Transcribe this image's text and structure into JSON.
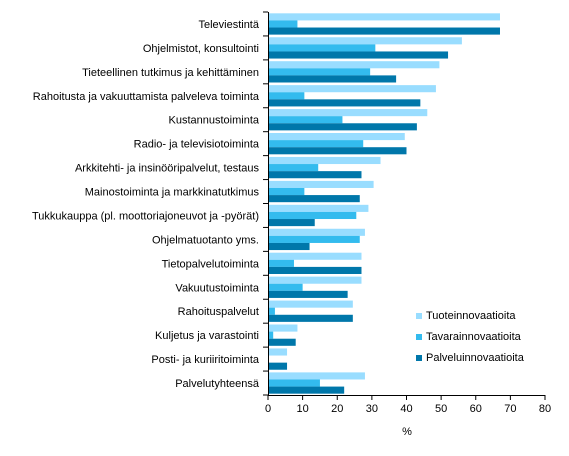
{
  "chart_data": {
    "type": "bar",
    "orientation": "horizontal",
    "xlabel": "%",
    "xlim": [
      0,
      80
    ],
    "xticks": [
      0,
      10,
      20,
      30,
      40,
      50,
      60,
      70,
      80
    ],
    "grid": false,
    "legend_position": "bottom-right",
    "categories": [
      "Televiestintä",
      "Ohjelmistot, konsultointi",
      "Tieteellinen tutkimus ja kehittäminen",
      "Rahoitusta ja vakuuttamista palveleva toiminta",
      "Kustannustoiminta",
      "Radio- ja televisiotoiminta",
      "Arkkitehti- ja insinööripalvelut, testaus",
      "Mainostoiminta ja markkinatutkimus",
      "Tukkukauppa (pl. moottoriajoneuvot ja -pyörät)",
      "Ohjelmatuotanto yms.",
      "Tietopalvelutoiminta",
      "Vakuutustoiminta",
      "Rahoituspalvelut",
      "Kuljetus ja varastointi",
      "Posti- ja kuriiritoiminta",
      "Palvelutyhteensä"
    ],
    "series": [
      {
        "name": "Tuoteinnovaatioita",
        "color": "#99ddff",
        "values": [
          67,
          56,
          49.5,
          48.5,
          46,
          39.5,
          32.5,
          30.5,
          29,
          28,
          27,
          27,
          24.5,
          8.5,
          5.5,
          28
        ]
      },
      {
        "name": "Tavarainnovaatioita",
        "color": "#33bbee",
        "values": [
          8.5,
          31,
          29.5,
          10.5,
          21.5,
          27.5,
          14.5,
          10.5,
          25.5,
          26.5,
          7.5,
          10,
          2,
          1.5,
          0,
          15
        ]
      },
      {
        "name": "Palveluinnovaatioita",
        "color": "#0077aa",
        "values": [
          67,
          52,
          37,
          44,
          43,
          40,
          27,
          26.5,
          13.5,
          12,
          27,
          23,
          24.5,
          8,
          5.5,
          22
        ]
      }
    ]
  }
}
